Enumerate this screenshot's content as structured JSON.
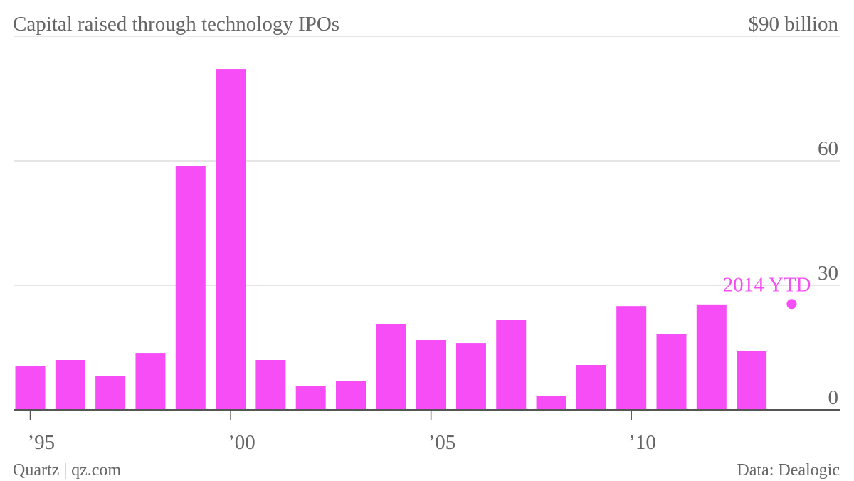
{
  "chart_data": {
    "type": "bar",
    "title": "Capital raised through technology IPOs",
    "x": [
      1995,
      1996,
      1997,
      1998,
      1999,
      2000,
      2001,
      2002,
      2003,
      2004,
      2005,
      2006,
      2007,
      2008,
      2009,
      2010,
      2011,
      2012,
      2013
    ],
    "values": [
      10.6,
      12.0,
      8.1,
      13.7,
      58.8,
      82.1,
      12.0,
      5.8,
      7.0,
      20.6,
      16.8,
      16.1,
      21.6,
      3.3,
      10.8,
      25.0,
      18.3,
      25.4,
      14.1
    ],
    "color": "#f74df7",
    "highlight": {
      "x": 2014,
      "value": 25.5,
      "label": "2014 YTD"
    },
    "xlim": [
      1994.6,
      2015.2
    ],
    "xticks": [
      {
        "value": 1995,
        "label": "’95"
      },
      {
        "value": 2000,
        "label": "’00"
      },
      {
        "value": 2005,
        "label": "’05"
      },
      {
        "value": 2010,
        "label": "’10"
      }
    ],
    "ylim": [
      0,
      90
    ],
    "yticks": [
      0,
      30,
      60,
      {
        "value": 90,
        "label": "$90 billion"
      }
    ],
    "grid": true,
    "source": "Data: Dealogic",
    "credit": "Quartz | qz.com"
  }
}
